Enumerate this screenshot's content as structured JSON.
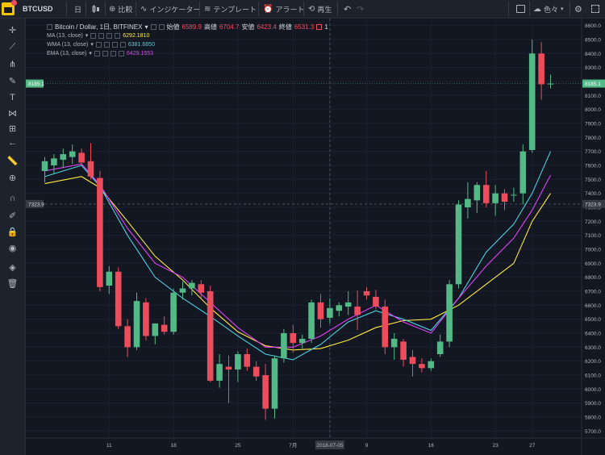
{
  "toolbar": {
    "symbol": "BTCUSD",
    "interval": "日",
    "compare_label": "比較",
    "indicators_label": "インジケーター",
    "templates_label": "テンプレート",
    "alert_label": "アラート",
    "replay_label": "再生",
    "right_label": "色々"
  },
  "legend": {
    "title": "Bitcoin / Dollar, 1日, BITFINEX",
    "open_label": "始値",
    "open_value": "6589.9",
    "high_label": "高値",
    "high_value": "6704.7",
    "low_label": "安値",
    "low_value": "6423.4",
    "close_label": "終値",
    "close_value": "6531.3",
    "flag_count": "1",
    "ma_label": "MA (13, close)",
    "ma_value": "6292.1810",
    "wma_label": "WMA (13, close)",
    "wma_value": "6381.6850",
    "ema_label": "EMA (13, close)",
    "ema_value": "6429.1553"
  },
  "colors": {
    "up": "#53b987",
    "down": "#eb4d5c",
    "ma": "#ffeb3b",
    "wma": "#4dd0e1",
    "ema": "#e040fb",
    "bg": "#131722"
  },
  "price_tags": {
    "last": "8185.1",
    "crosshair": "7323.9"
  },
  "x_ticks": [
    {
      "i": 7,
      "label": "11"
    },
    {
      "i": 14,
      "label": "18"
    },
    {
      "i": 21,
      "label": "25"
    },
    {
      "i": 27,
      "label": "7月"
    },
    {
      "i": 31,
      "label": "2018-07-05"
    },
    {
      "i": 35,
      "label": "9"
    },
    {
      "i": 42,
      "label": "16"
    },
    {
      "i": 49,
      "label": "23"
    },
    {
      "i": 53,
      "label": "27"
    }
  ],
  "chart_data": {
    "type": "candlestick",
    "ylim": [
      5650,
      8650
    ],
    "y_ticks": [
      5700,
      5800,
      5900,
      6000,
      6100,
      6200,
      6300,
      6400,
      6500,
      6600,
      6700,
      6800,
      6900,
      7000,
      7100,
      7200,
      7300,
      7400,
      7500,
      7600,
      7700,
      7800,
      7900,
      8000,
      8100,
      8200,
      8300,
      8400,
      8500,
      8600
    ],
    "candles": [
      {
        "o": 7560,
        "h": 7660,
        "l": 7480,
        "c": 7630
      },
      {
        "o": 7600,
        "h": 7680,
        "l": 7540,
        "c": 7650
      },
      {
        "o": 7640,
        "h": 7720,
        "l": 7580,
        "c": 7680
      },
      {
        "o": 7660,
        "h": 7750,
        "l": 7610,
        "c": 7700
      },
      {
        "o": 7690,
        "h": 7720,
        "l": 7600,
        "c": 7620
      },
      {
        "o": 7630,
        "h": 7760,
        "l": 7500,
        "c": 7520
      },
      {
        "o": 7510,
        "h": 7560,
        "l": 6700,
        "c": 6730
      },
      {
        "o": 6740,
        "h": 6880,
        "l": 6680,
        "c": 6840
      },
      {
        "o": 6840,
        "h": 6870,
        "l": 6430,
        "c": 6450
      },
      {
        "o": 6450,
        "h": 6500,
        "l": 6230,
        "c": 6300
      },
      {
        "o": 6300,
        "h": 6690,
        "l": 6280,
        "c": 6630
      },
      {
        "o": 6620,
        "h": 6650,
        "l": 6350,
        "c": 6380
      },
      {
        "o": 6380,
        "h": 6470,
        "l": 6320,
        "c": 6470
      },
      {
        "o": 6460,
        "h": 6520,
        "l": 6390,
        "c": 6410
      },
      {
        "o": 6410,
        "h": 6720,
        "l": 6390,
        "c": 6690
      },
      {
        "o": 6690,
        "h": 6770,
        "l": 6640,
        "c": 6720
      },
      {
        "o": 6720,
        "h": 6780,
        "l": 6670,
        "c": 6760
      },
      {
        "o": 6750,
        "h": 6780,
        "l": 6650,
        "c": 6690
      },
      {
        "o": 6700,
        "h": 6740,
        "l": 6050,
        "c": 6060
      },
      {
        "o": 6060,
        "h": 6250,
        "l": 6010,
        "c": 6180
      },
      {
        "o": 6160,
        "h": 6240,
        "l": 5900,
        "c": 6140
      },
      {
        "o": 6140,
        "h": 6270,
        "l": 6050,
        "c": 6250
      },
      {
        "o": 6250,
        "h": 6290,
        "l": 6130,
        "c": 6160
      },
      {
        "o": 6160,
        "h": 6200,
        "l": 6060,
        "c": 6090
      },
      {
        "o": 6100,
        "h": 6180,
        "l": 5780,
        "c": 5860
      },
      {
        "o": 5860,
        "h": 6240,
        "l": 5790,
        "c": 6220
      },
      {
        "o": 6220,
        "h": 6430,
        "l": 6190,
        "c": 6400
      },
      {
        "o": 6400,
        "h": 6460,
        "l": 6260,
        "c": 6330
      },
      {
        "o": 6330,
        "h": 6390,
        "l": 6290,
        "c": 6360
      },
      {
        "o": 6360,
        "h": 6640,
        "l": 6330,
        "c": 6620
      },
      {
        "o": 6620,
        "h": 6680,
        "l": 6440,
        "c": 6500
      },
      {
        "o": 6510,
        "h": 6650,
        "l": 6470,
        "c": 6580
      },
      {
        "o": 6560,
        "h": 6620,
        "l": 6520,
        "c": 6600
      },
      {
        "o": 6590,
        "h": 6700,
        "l": 6530,
        "c": 6620
      },
      {
        "o": 6590,
        "h": 6705,
        "l": 6423,
        "c": 6531
      },
      {
        "o": 6700,
        "h": 6730,
        "l": 6640,
        "c": 6670
      },
      {
        "o": 6660,
        "h": 6710,
        "l": 6570,
        "c": 6590
      },
      {
        "o": 6590,
        "h": 6640,
        "l": 6250,
        "c": 6300
      },
      {
        "o": 6300,
        "h": 6400,
        "l": 6210,
        "c": 6360
      },
      {
        "o": 6340,
        "h": 6360,
        "l": 6160,
        "c": 6210
      },
      {
        "o": 6230,
        "h": 6280,
        "l": 6090,
        "c": 6180
      },
      {
        "o": 6180,
        "h": 6220,
        "l": 6120,
        "c": 6150
      },
      {
        "o": 6150,
        "h": 6220,
        "l": 6130,
        "c": 6200
      },
      {
        "o": 6250,
        "h": 6390,
        "l": 6230,
        "c": 6340
      },
      {
        "o": 6340,
        "h": 6780,
        "l": 6300,
        "c": 6750
      },
      {
        "o": 6750,
        "h": 7350,
        "l": 6720,
        "c": 7320
      },
      {
        "o": 7300,
        "h": 7480,
        "l": 7220,
        "c": 7360
      },
      {
        "o": 7350,
        "h": 7480,
        "l": 7260,
        "c": 7460
      },
      {
        "o": 7460,
        "h": 7560,
        "l": 7300,
        "c": 7330
      },
      {
        "o": 7330,
        "h": 7460,
        "l": 7240,
        "c": 7400
      },
      {
        "o": 7400,
        "h": 7430,
        "l": 7280,
        "c": 7340
      },
      {
        "o": 7390,
        "h": 7440,
        "l": 7340,
        "c": 7390
      },
      {
        "o": 7400,
        "h": 7750,
        "l": 7320,
        "c": 7700
      },
      {
        "o": 7710,
        "h": 8500,
        "l": 7690,
        "c": 8400
      },
      {
        "o": 8400,
        "h": 8480,
        "l": 8070,
        "c": 8180
      },
      {
        "o": 8180,
        "h": 8250,
        "l": 8150,
        "c": 8185
      }
    ],
    "ma": [
      [
        0,
        7470
      ],
      [
        4,
        7520
      ],
      [
        6,
        7440
      ],
      [
        9,
        7200
      ],
      [
        12,
        6950
      ],
      [
        15,
        6780
      ],
      [
        18,
        6580
      ],
      [
        21,
        6410
      ],
      [
        24,
        6310
      ],
      [
        27,
        6280
      ],
      [
        30,
        6290
      ],
      [
        33,
        6350
      ],
      [
        36,
        6440
      ],
      [
        39,
        6490
      ],
      [
        42,
        6500
      ],
      [
        45,
        6600
      ],
      [
        48,
        6750
      ],
      [
        51,
        6900
      ],
      [
        53,
        7200
      ],
      [
        55,
        7400
      ]
    ],
    "wma": [
      [
        0,
        7520
      ],
      [
        4,
        7600
      ],
      [
        6,
        7450
      ],
      [
        9,
        7100
      ],
      [
        12,
        6800
      ],
      [
        15,
        6650
      ],
      [
        18,
        6520
      ],
      [
        21,
        6380
      ],
      [
        24,
        6250
      ],
      [
        27,
        6210
      ],
      [
        30,
        6320
      ],
      [
        33,
        6480
      ],
      [
        36,
        6560
      ],
      [
        39,
        6500
      ],
      [
        42,
        6420
      ],
      [
        45,
        6650
      ],
      [
        48,
        6980
      ],
      [
        51,
        7180
      ],
      [
        53,
        7400
      ],
      [
        55,
        7700
      ]
    ],
    "ema": [
      [
        0,
        7560
      ],
      [
        4,
        7610
      ],
      [
        6,
        7460
      ],
      [
        9,
        7150
      ],
      [
        12,
        6900
      ],
      [
        15,
        6800
      ],
      [
        18,
        6620
      ],
      [
        21,
        6440
      ],
      [
        24,
        6300
      ],
      [
        27,
        6300
      ],
      [
        30,
        6380
      ],
      [
        33,
        6500
      ],
      [
        36,
        6600
      ],
      [
        39,
        6480
      ],
      [
        42,
        6400
      ],
      [
        45,
        6650
      ],
      [
        48,
        6880
      ],
      [
        51,
        7080
      ],
      [
        53,
        7280
      ],
      [
        55,
        7530
      ]
    ]
  }
}
